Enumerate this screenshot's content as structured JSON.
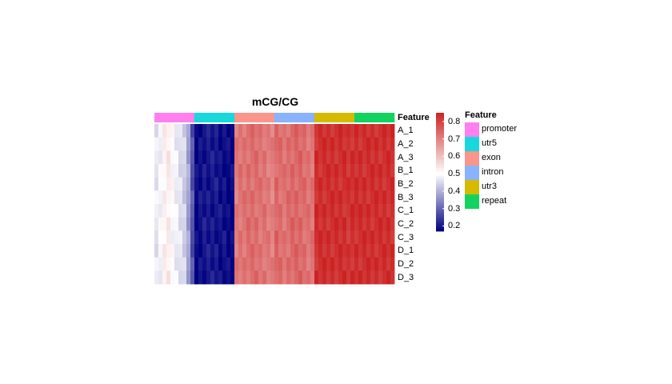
{
  "chart_data": {
    "type": "heatmap",
    "title": "mCG/CG",
    "annotation_title": "Feature",
    "rows": [
      "A_1",
      "A_2",
      "A_3",
      "B_1",
      "B_2",
      "B_3",
      "C_1",
      "C_2",
      "C_3",
      "D_1",
      "D_2",
      "D_3"
    ],
    "features": [
      {
        "name": "promoter",
        "color": "#FF7FF0",
        "value_profile": [
          0.47,
          0.49,
          0.52,
          0.53,
          0.5,
          0.48,
          0.46,
          0.44,
          0.38,
          0.28
        ]
      },
      {
        "name": "utr5",
        "color": "#17D9DB",
        "value_profile": [
          0.18,
          0.19,
          0.2,
          0.2,
          0.2,
          0.2,
          0.19,
          0.19,
          0.18,
          0.18
        ]
      },
      {
        "name": "exon",
        "color": "#FA958C",
        "value_profile": [
          0.71,
          0.72,
          0.72,
          0.73,
          0.73,
          0.73,
          0.72,
          0.72,
          0.71,
          0.7
        ]
      },
      {
        "name": "intron",
        "color": "#89B2FF",
        "value_profile": [
          0.74,
          0.73,
          0.72,
          0.73,
          0.74,
          0.74,
          0.74,
          0.73,
          0.72,
          0.72
        ]
      },
      {
        "name": "utr3",
        "color": "#D5BA00",
        "value_profile": [
          0.83,
          0.83,
          0.83,
          0.83,
          0.83,
          0.83,
          0.83,
          0.83,
          0.82,
          0.83
        ]
      },
      {
        "name": "repeat",
        "color": "#13D360",
        "value_profile": [
          0.83,
          0.83,
          0.83,
          0.83,
          0.83,
          0.83,
          0.83,
          0.83,
          0.83,
          0.83
        ]
      }
    ],
    "colorbar": {
      "ticks": [
        0.8,
        0.7,
        0.6,
        0.5,
        0.4,
        0.3,
        0.2
      ],
      "range": [
        0.17,
        0.85
      ],
      "low_color": "#000080",
      "mid_color": "#ffffff",
      "high_color": "#cc2222",
      "mid_value": 0.5
    },
    "legend_placement": "right"
  }
}
